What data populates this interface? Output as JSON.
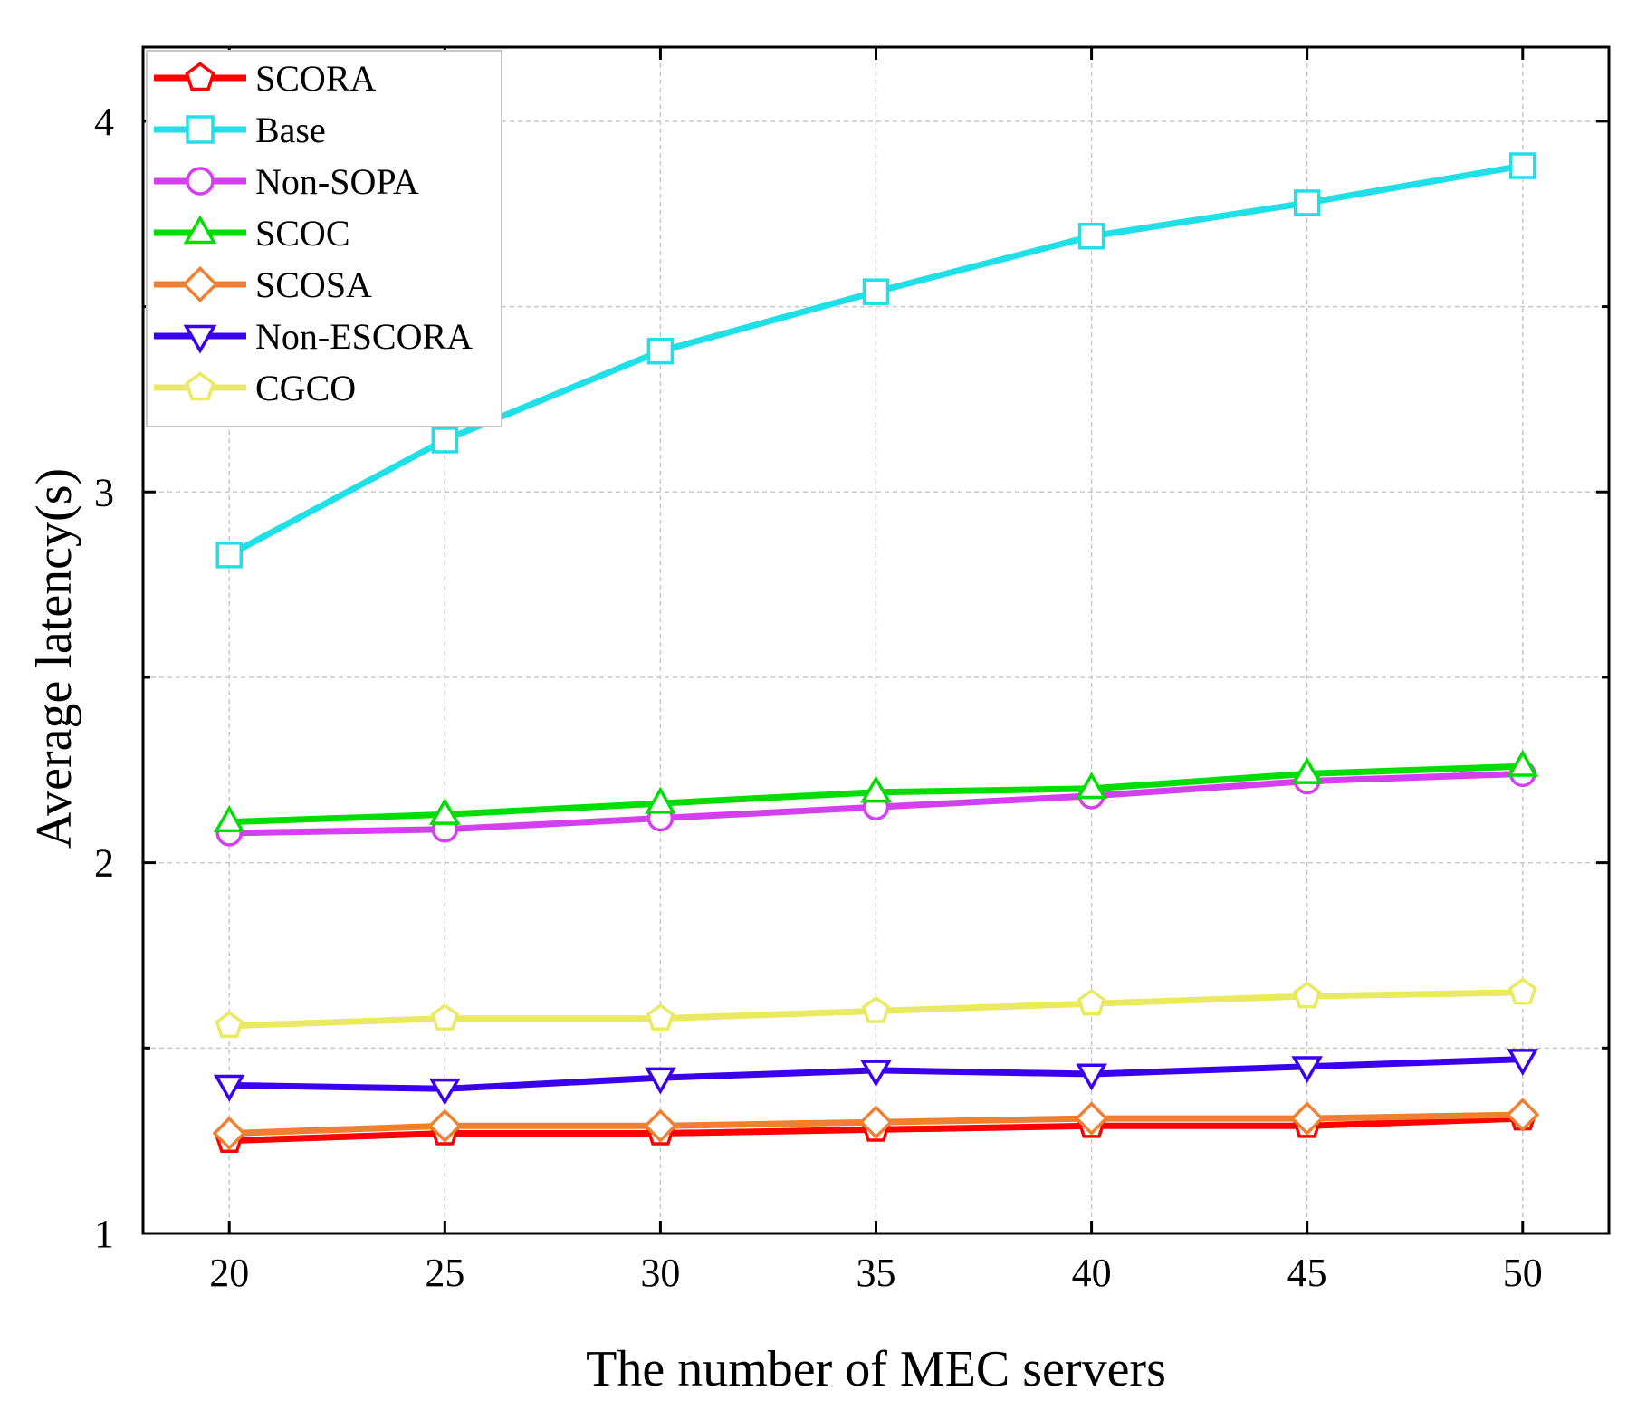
{
  "chart_data": {
    "type": "line",
    "title": "",
    "xlabel": "The number of MEC servers",
    "ylabel": "Average latency(s)",
    "x": [
      20,
      25,
      30,
      35,
      40,
      45,
      50
    ],
    "xlim": [
      18,
      52
    ],
    "ylim": [
      1,
      4.2
    ],
    "xticks": [
      "20",
      "25",
      "30",
      "35",
      "40",
      "45",
      "50"
    ],
    "yticks": [
      "1",
      "2",
      "3",
      "4"
    ],
    "yminor": [
      1.5,
      2.5,
      3.5
    ],
    "grid": true,
    "legend_position": "top-left",
    "series": [
      {
        "name": "SCORA",
        "color": "#ff0000",
        "marker": "pentagon",
        "values": [
          1.25,
          1.27,
          1.27,
          1.28,
          1.29,
          1.29,
          1.31
        ]
      },
      {
        "name": "Base",
        "color": "#1ee0e6",
        "marker": "square",
        "values": [
          2.83,
          3.14,
          3.38,
          3.54,
          3.69,
          3.78,
          3.88
        ]
      },
      {
        "name": "Non-SOPA",
        "color": "#d43ff0",
        "marker": "circle",
        "values": [
          2.08,
          2.09,
          2.12,
          2.15,
          2.18,
          2.22,
          2.24
        ]
      },
      {
        "name": "SCOC",
        "color": "#00dd00",
        "marker": "triangle-up",
        "values": [
          2.11,
          2.13,
          2.16,
          2.19,
          2.2,
          2.24,
          2.26
        ]
      },
      {
        "name": "SCOSA",
        "color": "#f08030",
        "marker": "diamond",
        "values": [
          1.27,
          1.29,
          1.29,
          1.3,
          1.31,
          1.31,
          1.32
        ]
      },
      {
        "name": "Non-ESCORA",
        "color": "#3a00ee",
        "marker": "triangle-down",
        "values": [
          1.4,
          1.39,
          1.42,
          1.44,
          1.43,
          1.45,
          1.47
        ]
      },
      {
        "name": "CGCO",
        "color": "#eaea60",
        "marker": "pentagon",
        "values": [
          1.56,
          1.58,
          1.58,
          1.6,
          1.62,
          1.64,
          1.65
        ]
      }
    ]
  }
}
